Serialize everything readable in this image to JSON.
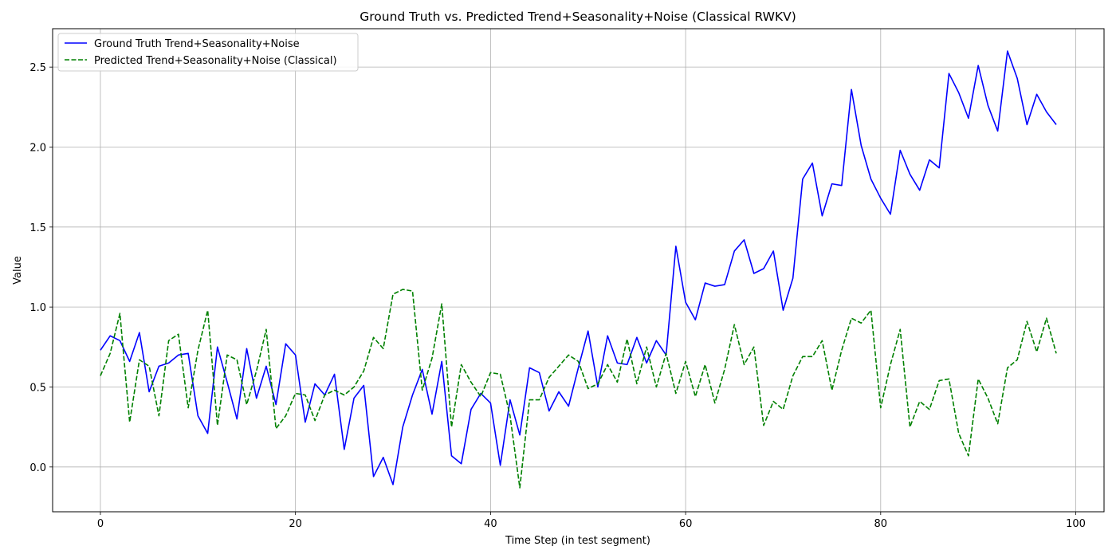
{
  "chart_data": {
    "type": "line",
    "title": "Ground Truth vs. Predicted Trend+Seasonality+Noise (Classical RWKV)",
    "xlabel": "Time Step (in test segment)",
    "ylabel": "Value",
    "xlim": [
      -4.9,
      102.9
    ],
    "ylim": [
      -0.28,
      2.74
    ],
    "xticks": [
      0,
      20,
      40,
      60,
      80,
      100
    ],
    "yticks": [
      0.0,
      0.5,
      1.0,
      1.5,
      2.0,
      2.5
    ],
    "xtick_labels": [
      "0",
      "20",
      "40",
      "60",
      "80",
      "100"
    ],
    "ytick_labels": [
      "0.0",
      "0.5",
      "1.0",
      "1.5",
      "2.0",
      "2.5"
    ],
    "grid": true,
    "legend_position": "top-left",
    "series": [
      {
        "name": "Ground Truth Trend+Seasonality+Noise",
        "color": "#0000ff",
        "style": "solid",
        "values": [
          0.73,
          0.82,
          0.79,
          0.66,
          0.84,
          0.47,
          0.63,
          0.65,
          0.7,
          0.71,
          0.32,
          0.21,
          0.75,
          0.53,
          0.3,
          0.74,
          0.43,
          0.63,
          0.39,
          0.77,
          0.7,
          0.28,
          0.52,
          0.45,
          0.58,
          0.11,
          0.43,
          0.51,
          -0.06,
          0.06,
          -0.11,
          0.25,
          0.45,
          0.61,
          0.33,
          0.66,
          0.07,
          0.02,
          0.36,
          0.46,
          0.4,
          0.01,
          0.42,
          0.2,
          0.62,
          0.59,
          0.35,
          0.47,
          0.38,
          0.62,
          0.85,
          0.5,
          0.82,
          0.65,
          0.64,
          0.81,
          0.65,
          0.79,
          0.7,
          1.38,
          1.03,
          0.92,
          1.15,
          1.13,
          1.14,
          1.35,
          1.42,
          1.21,
          1.24,
          1.35,
          0.98,
          1.18,
          1.8,
          1.9,
          1.57,
          1.77,
          1.76,
          2.36,
          2.01,
          1.8,
          1.68,
          1.58,
          1.98,
          1.83,
          1.73,
          1.92,
          1.87,
          2.46,
          2.34,
          2.18,
          2.51,
          2.26,
          2.1,
          2.6,
          2.43,
          2.14,
          2.33,
          2.22,
          2.14
        ]
      },
      {
        "name": "Predicted Trend+Seasonality+Noise (Classical)",
        "color": "#008000",
        "style": "dashed",
        "values": [
          0.57,
          0.71,
          0.96,
          0.28,
          0.67,
          0.63,
          0.32,
          0.79,
          0.83,
          0.37,
          0.73,
          0.98,
          0.26,
          0.7,
          0.67,
          0.39,
          0.6,
          0.86,
          0.24,
          0.32,
          0.46,
          0.45,
          0.29,
          0.45,
          0.48,
          0.45,
          0.5,
          0.6,
          0.81,
          0.74,
          1.08,
          1.11,
          1.1,
          0.48,
          0.68,
          1.02,
          0.25,
          0.64,
          0.53,
          0.44,
          0.59,
          0.58,
          0.32,
          -0.13,
          0.42,
          0.42,
          0.56,
          0.63,
          0.7,
          0.66,
          0.49,
          0.52,
          0.64,
          0.53,
          0.8,
          0.52,
          0.75,
          0.5,
          0.71,
          0.46,
          0.66,
          0.44,
          0.64,
          0.4,
          0.61,
          0.89,
          0.64,
          0.75,
          0.26,
          0.41,
          0.36,
          0.57,
          0.69,
          0.69,
          0.79,
          0.48,
          0.73,
          0.93,
          0.9,
          0.98,
          0.37,
          0.64,
          0.86,
          0.25,
          0.41,
          0.36,
          0.54,
          0.55,
          0.21,
          0.07,
          0.55,
          0.43,
          0.27,
          0.62,
          0.67,
          0.91,
          0.72,
          0.93,
          0.71
        ]
      }
    ]
  }
}
